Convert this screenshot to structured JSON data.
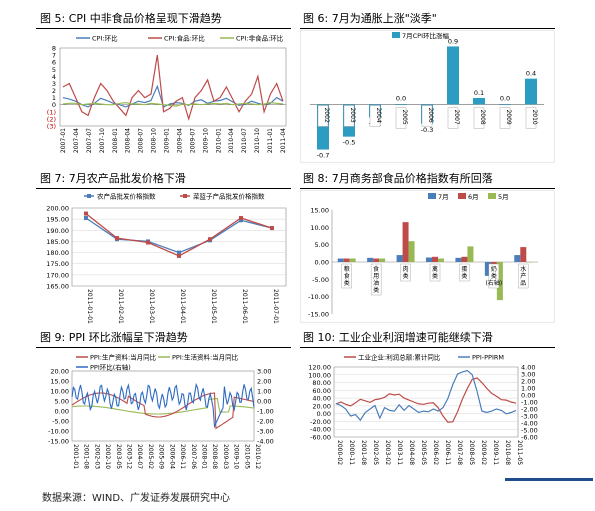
{
  "source_note": "数据来源：WIND、广发证券发展研究中心",
  "titles": {
    "f5": "图 5: CPI 中非食品价格呈现下滑趋势",
    "f6": "图 6: 7月为通胀上涨\"淡季\"",
    "f7": "图 7: 7月农产品批发价格下滑",
    "f8": "图 8: 7月商务部食品价格指数有所回落",
    "f9": "图 9: PPI 环比涨幅呈下滑趋势",
    "f10": "图 10: 工业企业利润增速可能继续下滑"
  },
  "colors": {
    "blue": "#4a7ebb",
    "red": "#be4b48",
    "green": "#98b954",
    "teal": "#2d9cc2",
    "purple": "#7e649e",
    "grid": "#cccccc"
  },
  "chart_data": [
    {
      "id": "f5",
      "type": "line",
      "series": [
        {
          "name": "CPI:环比",
          "color": "#4a7ebb",
          "values": [
            1.0,
            0.8,
            0.5,
            0.0,
            -0.3,
            0.2,
            0.9,
            0.6,
            0.2,
            0.0,
            -0.3,
            0.1,
            0.5,
            0.3,
            0.6,
            2.6,
            -0.3,
            0.1,
            0.3,
            0.2,
            -0.1,
            0.5,
            0.7,
            0.2,
            0.5,
            0.6,
            0.9,
            0.4,
            -0.1,
            0.1,
            0.5,
            0.2,
            0.0,
            0.2,
            1.0,
            0.5
          ]
        },
        {
          "name": "CPI:食品:环比",
          "color": "#be4b48",
          "values": [
            2.5,
            3.0,
            1.0,
            -1.0,
            -1.5,
            1.0,
            3.0,
            2.0,
            0.5,
            -0.5,
            -1.5,
            1.0,
            2.0,
            1.0,
            1.5,
            7.0,
            -1.0,
            -0.5,
            0.5,
            1.0,
            -2.0,
            1.0,
            2.0,
            3.5,
            0.5,
            1.0,
            2.5,
            0.8,
            -1.0,
            0.5,
            1.5,
            4.0,
            -1.0,
            1.5,
            3.0,
            0.5
          ]
        },
        {
          "name": "CPI:非食品:环比",
          "color": "#98b954",
          "values": [
            0.1,
            0.2,
            0.2,
            0.0,
            0.1,
            0.2,
            0.1,
            0.0,
            0.0,
            0.2,
            0.3,
            0.1,
            0.1,
            0.0,
            0.2,
            0.1,
            0.0,
            -0.1,
            -0.2,
            0.1,
            0.0,
            0.1,
            0.0,
            0.1,
            0.2,
            0.1,
            0.2,
            0.0,
            0.1,
            0.2,
            0.1,
            0.0,
            0.1,
            0.3,
            0.2,
            0.1
          ]
        }
      ],
      "xticks": [
        "2007-01",
        "2007-04",
        "2007-07",
        "2007-10",
        "2008-01",
        "2008-04",
        "2008-07",
        "2008-10",
        "2009-01",
        "2009-04",
        "2009-07",
        "2009-10",
        "2010-01",
        "2010-04",
        "2010-07",
        "2010-10",
        "2011-01",
        "2011-04"
      ],
      "yticks": [
        "8",
        "7",
        "6",
        "5",
        "4",
        "3",
        "2",
        "1",
        "0",
        "(1)",
        "(2)",
        "(3)"
      ],
      "ylim": [
        -3,
        8
      ]
    },
    {
      "id": "f6",
      "type": "bar",
      "legend": "7月CPI环比涨幅",
      "categories": [
        "2002",
        "2003",
        "2004",
        "2005",
        "2006",
        "2007",
        "2008",
        "2009",
        "2010"
      ],
      "values": [
        -0.7,
        -0.5,
        -0.2,
        0.0,
        -0.3,
        0.9,
        0.1,
        0.0,
        0.4
      ],
      "labels": [
        "-0.7",
        "-0.5",
        "-0.2",
        "0.0",
        "-0.3",
        "0.9",
        "0.1",
        "0.0",
        "0.4"
      ],
      "ylim": [
        -0.8,
        1.0
      ]
    },
    {
      "id": "f7",
      "type": "line",
      "series": [
        {
          "name": "农产品批发价格指数",
          "color": "#4a7ebb",
          "values": [
            195.5,
            186.0,
            185.0,
            180.0,
            185.5,
            194.5,
            191.0
          ]
        },
        {
          "name": "菜篮子产品批发价格指数",
          "color": "#be4b48",
          "values": [
            197.5,
            186.5,
            184.5,
            178.5,
            186.0,
            195.5,
            191.0
          ]
        }
      ],
      "xticks": [
        "2011-01-01",
        "2011-02-01",
        "2011-03-01",
        "2011-04-01",
        "2011-05-01",
        "2011-06-01",
        "2011-07-01"
      ],
      "yticks": [
        "200.00",
        "195.00",
        "190.00",
        "185.00",
        "180.00",
        "175.00",
        "170.00",
        "165.00"
      ],
      "ylim": [
        165,
        200
      ]
    },
    {
      "id": "f8",
      "type": "bar",
      "categories": [
        "粮食类",
        "食用油类",
        "肉类",
        "禽类",
        "蛋类",
        "奶类",
        "水产品"
      ],
      "cat_labels": [
        "粮\n食\n类",
        "食\n用\n油\n类",
        "肉\n类",
        "禽\n类",
        "蛋\n类",
        "奶\n类",
        "水\n产\n品"
      ],
      "flip_label": "奶\n类\n(右轴)",
      "series": [
        {
          "name": "7月",
          "color": "#4a7ebb",
          "values": [
            1.0,
            1.2,
            2.0,
            1.3,
            1.2,
            -4.0,
            2.0
          ]
        },
        {
          "name": "6月",
          "color": "#be4b48",
          "values": [
            1.0,
            1.0,
            11.5,
            1.5,
            1.5,
            -6.5,
            4.3
          ]
        },
        {
          "name": "5月",
          "color": "#98b954",
          "values": [
            1.0,
            1.0,
            6.0,
            1.0,
            4.5,
            -11.0,
            0.0
          ]
        }
      ],
      "yticks": [
        "15.00",
        "10.00",
        "5.00",
        "0.00",
        "-5.00",
        "-10.00",
        "-15.00"
      ],
      "ylim": [
        -15,
        15
      ]
    },
    {
      "id": "f9",
      "type": "line",
      "series": [
        {
          "name": "PPI:生产资料:当月同比",
          "color": "#be4b48"
        },
        {
          "name": "PPI:生活资料:当月同比",
          "color": "#98b954"
        },
        {
          "name": "PPI环比(右轴)",
          "color": "#2d6ac4"
        }
      ],
      "xticks": [
        "2001-01",
        "2001-08",
        "2002-03",
        "2002-10",
        "2003-05",
        "2003-12",
        "2004-07",
        "2005-02",
        "2005-09",
        "2006-04",
        "2006-11",
        "2007-06",
        "2008-01",
        "2008-08",
        "2009-03",
        "2009-10",
        "2010-05",
        "2010-12"
      ],
      "yticks_left": [
        "20.00",
        "15.00",
        "10.00",
        "5.00",
        "0.00",
        "-5.00",
        "-10.00",
        "-15.00"
      ],
      "yticks_right": [
        "3.00",
        "2.00",
        "1.00",
        "0.00",
        "-1.00",
        "-2.00",
        "-3.00",
        "-4.00"
      ],
      "ylim_left": [
        -15,
        20
      ],
      "ylim_right": [
        -4,
        3
      ]
    },
    {
      "id": "f10",
      "type": "line",
      "series": [
        {
          "name": "工业企业:利润总额:累计同比",
          "color": "#be4b48",
          "values": [
            25,
            30,
            24,
            20,
            28,
            37,
            33,
            29,
            36,
            38,
            42,
            51,
            48,
            50,
            40,
            35,
            30,
            25,
            24,
            27,
            28,
            15,
            -6,
            -22,
            -21,
            5,
            38,
            65,
            88,
            92,
            80,
            65,
            52,
            45,
            36,
            35,
            30,
            27
          ]
        },
        {
          "name": "PPI-PPIRM",
          "color": "#4a7ebb",
          "values": [
            -1.2,
            -1.5,
            -2.0,
            -3.0,
            -2.8,
            -3.6,
            -2.5,
            -2.0,
            -1.5,
            -3.3,
            -1.8,
            -2.2,
            -2.3,
            -1.4,
            -2.2,
            -1.5,
            -2.0,
            -2.5,
            -2.3,
            -2.4,
            -2.0,
            -2.3,
            -1.8,
            -0.5,
            1.5,
            3.0,
            3.3,
            3.5,
            2.9,
            0.5,
            -2.3,
            -2.5,
            -2.3,
            -2.0,
            -2.2,
            -2.7,
            -2.5,
            -2.2
          ]
        }
      ],
      "xticks": [
        "2000-02",
        "2000-11",
        "2001-08",
        "2002-05",
        "2003-02",
        "2003-11",
        "2004-08",
        "2005-05",
        "2006-02",
        "2006-11",
        "2007-08",
        "2008-05",
        "2009-02",
        "2009-11",
        "2010-08",
        "2011-05"
      ],
      "yticks_left": [
        "120.00",
        "100.00",
        "80.00",
        "60.00",
        "40.00",
        "20.00",
        "0.00",
        "-20.00",
        "-40.00",
        "-60.00"
      ],
      "yticks_right": [
        "4.00",
        "3.00",
        "2.00",
        "1.00",
        "0.00",
        "-1.00",
        "-2.00",
        "-3.00",
        "-4.00",
        "-5.00",
        "-6.00"
      ],
      "ylim_left": [
        -60,
        120
      ],
      "ylim_right": [
        -6,
        4
      ]
    }
  ]
}
